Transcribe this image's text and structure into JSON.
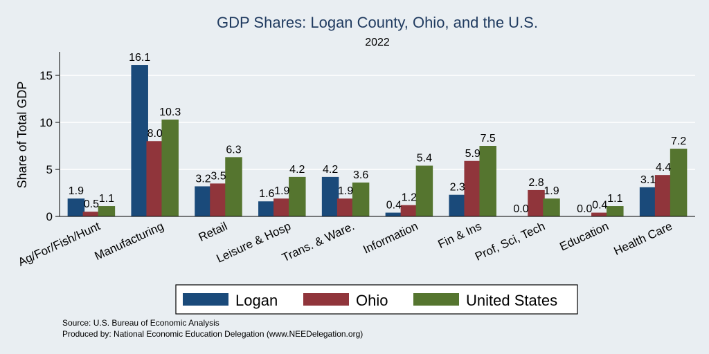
{
  "chart_data": {
    "type": "bar",
    "title": "GDP Shares: Logan County, Ohio, and the U.S.",
    "subtitle": "2022",
    "ylabel": "Share of Total GDP",
    "xlabel": "",
    "ylim": [
      0,
      17.5
    ],
    "yticks": [
      0,
      5,
      10,
      15
    ],
    "grid": true,
    "legend_position": "bottom",
    "categories": [
      "Ag/For/Fish/Hunt",
      "Manufacturing",
      "Retail",
      "Leisure & Hosp",
      "Trans. & Ware.",
      "Information",
      "Fin & Ins",
      "Prof, Sci, Tech",
      "Education",
      "Health Care"
    ],
    "series": [
      {
        "name": "Logan",
        "color": "#1a4a7a",
        "values": [
          1.9,
          16.1,
          3.2,
          1.6,
          4.2,
          0.4,
          2.3,
          0.0,
          0.0,
          3.1
        ],
        "labels": [
          "1.9",
          "16.1",
          "3.2",
          "1.6",
          "4.2",
          "0.4",
          "2.3",
          "0.0",
          "0.0",
          "3.1"
        ]
      },
      {
        "name": "Ohio",
        "color": "#90353b",
        "values": [
          0.5,
          8.0,
          3.5,
          1.9,
          1.9,
          1.2,
          5.9,
          2.8,
          0.4,
          4.4
        ],
        "labels": [
          "0.5",
          "8.0",
          "3.5",
          "1.9",
          "1.9",
          "1.2",
          "5.9",
          "2.8",
          "0.4",
          "4.4"
        ]
      },
      {
        "name": "United States",
        "color": "#55752f",
        "values": [
          1.1,
          10.3,
          6.3,
          4.2,
          3.6,
          5.4,
          7.5,
          1.9,
          1.1,
          7.2
        ],
        "labels": [
          "1.1",
          "10.3",
          "6.3",
          "4.2",
          "3.6",
          "5.4",
          "7.5",
          "1.9",
          "1.1",
          "7.2"
        ]
      }
    ],
    "notes": [
      "Source: U.S. Bureau of Economic Analysis",
      "Produced by: National Economic Education Delegation (www.NEEDelegation.org)"
    ]
  }
}
